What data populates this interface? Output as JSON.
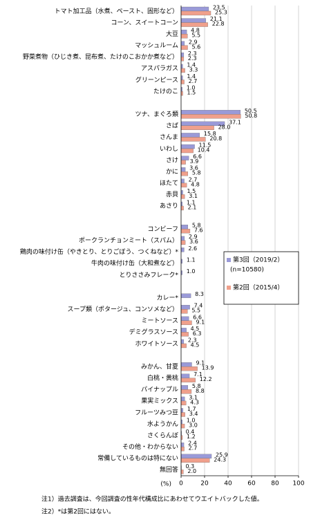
{
  "chart_data": {
    "type": "bar",
    "orientation": "horizontal",
    "categories": [
      "トマト加工品（水煮、ペースト、固形など）",
      "コーン、スイートコーン",
      "大豆",
      "マッシュルーム",
      "野菜煮物（ひじき煮、昆布煮、たけのこおかか煮など）",
      "アスパラガス",
      "グリーンピース",
      "たけのこ",
      null,
      "ツナ、まぐろ類",
      "さば",
      "さんま",
      "いわし",
      "さけ",
      "かに",
      "ほたて",
      "赤貝",
      "あさり",
      null,
      "コンビーフ",
      "ポークランチョンミート（スパム）",
      "鶏肉の味付け缶（やきとり、とりごぼう、つくねなど）*",
      "牛肉の味付け缶（大和煮など）",
      "とりささみフレーク*",
      null,
      "カレー*",
      "スープ類（ポタージュ、コンソメなど）",
      "ミートソース",
      "デミグラスソース",
      "ホワイトソース",
      null,
      "みかん、甘夏",
      "白桃・黄桃",
      "パイナップル",
      "果実ミックス",
      "フルーツみつ豆",
      "水ようかん",
      "さくらんぼ",
      "その他・わからない",
      "常備しているものは特にない",
      "無回答"
    ],
    "series": [
      {
        "name": "第3回（2019/2）",
        "note": "(n=10580)",
        "color": "#9a9ad8",
        "values": [
          23.5,
          21.1,
          4.8,
          2.9,
          2.3,
          1.4,
          1.4,
          1.0,
          null,
          50.5,
          37.1,
          15.8,
          11.5,
          6.6,
          3.6,
          2.7,
          1.5,
          1.1,
          null,
          5.8,
          2.9,
          2.6,
          1.1,
          1.0,
          null,
          8.3,
          7.4,
          6.6,
          4.5,
          2.3,
          null,
          9.1,
          7.1,
          5.8,
          3.1,
          1.7,
          1.0,
          0.4,
          2.4,
          25.9,
          0.3
        ],
        "value_labels": [
          "23.5",
          "21.1",
          "4.8",
          "2.9",
          "2.3",
          "1.4",
          "1.4",
          "1.0",
          null,
          "50.5",
          "37.1",
          "15.8",
          "11.5",
          "6.6",
          "3.6",
          "2.7",
          "1.5",
          "1.1",
          null,
          "5.8",
          "2.9",
          "2.6",
          "1.1",
          "1.0",
          null,
          "8.3",
          "7.4",
          "6.6",
          "4.5",
          "2.3",
          null,
          "9.1",
          "7.1",
          "5.8",
          "3.1",
          "1.7",
          "1.0",
          "0.4",
          "2.4",
          "25.9",
          "0.3"
        ]
      },
      {
        "name": "第2回（2015/4）",
        "color": "#f0a08c",
        "values": [
          25.3,
          22.8,
          5.5,
          5.6,
          2.3,
          3.3,
          2.7,
          1.5,
          null,
          50.8,
          28.0,
          20.8,
          10.4,
          3.9,
          5.8,
          4.8,
          3.1,
          2.1,
          null,
          7.6,
          3.6,
          null,
          null,
          null,
          null,
          null,
          5.5,
          9.1,
          6.3,
          4.5,
          null,
          13.9,
          12.2,
          8.8,
          4.3,
          3.4,
          3.0,
          1.2,
          2.7,
          24.3,
          2.0
        ],
        "value_labels": [
          "25.3",
          "22.8",
          "5.5",
          "5.6",
          "2.3",
          "3.3",
          "2.7",
          "1.5",
          null,
          "50.8",
          "28.0",
          "20.8",
          "10.4",
          "3.9",
          "5.8",
          "4.8",
          "3.1",
          "2.1",
          null,
          "7.6",
          "3.6",
          null,
          null,
          null,
          null,
          null,
          "5.5",
          "9.1",
          "6.3",
          "4.5",
          null,
          "13.9",
          "12.2",
          "8.8",
          "4.3",
          "3.4",
          "3.0",
          "1.2",
          "2.7",
          "24.3",
          "2.0"
        ]
      }
    ],
    "xlim": [
      0,
      100
    ],
    "xticks": [
      0,
      20,
      40,
      60,
      80,
      100
    ],
    "grid": true,
    "x_unit": "(%)",
    "notes": [
      "注1）過去調査は、今回調査の性年代構成比にあわせてウエイトバックした値。",
      "注2）*は第2回にはない。"
    ]
  }
}
